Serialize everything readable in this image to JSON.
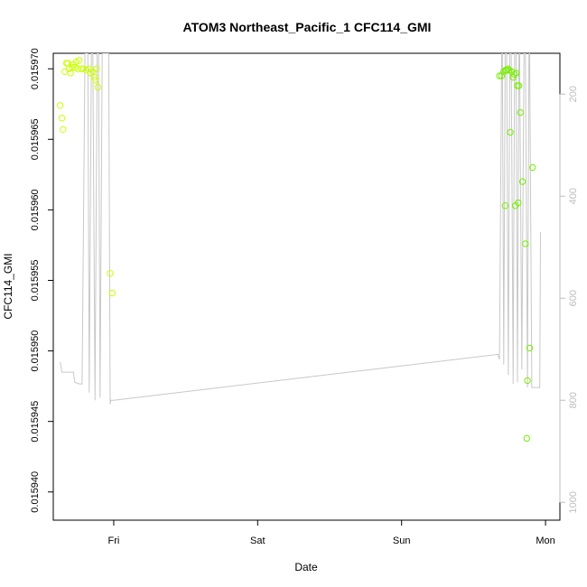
{
  "chart_data": {
    "type": "scatter",
    "title": "ATOM3 Northeast_Pacific_1 CFC114_GMI",
    "xlabel": "Date",
    "ylabel": "CFC114_GMI",
    "x_ticks": [
      "Fri",
      "Sat",
      "Sun",
      "Mon"
    ],
    "x_tick_values": [
      1.0,
      2.0,
      3.0,
      4.0
    ],
    "xlim": [
      0.58,
      4.1
    ],
    "ylim": [
      0.015938,
      0.0159711
    ],
    "y_ticks": [
      "0.015940",
      "0.015945",
      "0.015950",
      "0.015955",
      "0.015960",
      "0.015965",
      "0.015970"
    ],
    "y_tick_values": [
      0.01594,
      0.015945,
      0.01595,
      0.015955,
      0.01596,
      0.015965,
      0.01597
    ],
    "y2_ticks": [
      "200",
      "400",
      "600",
      "800",
      "1000"
    ],
    "y2_tick_values": [
      200,
      400,
      600,
      800,
      1000
    ],
    "y2lim": [
      1035,
      120
    ],
    "grid": false,
    "colors": {
      "line": "#c8c8c8",
      "points_early": "#ccff00",
      "points_late": "#77ee00",
      "frame": "#000000"
    },
    "series": [
      {
        "values": [
          [
            0.628,
            0.0159674
          ],
          [
            0.64,
            0.0159665
          ],
          [
            0.648,
            0.0159657
          ],
          [
            0.66,
            0.0159698
          ],
          [
            0.672,
            0.0159704
          ],
          [
            0.68,
            0.0159704
          ],
          [
            0.69,
            0.01597
          ],
          [
            0.7,
            0.0159697
          ],
          [
            0.712,
            0.0159701
          ],
          [
            0.72,
            0.0159703
          ],
          [
            0.73,
            0.0159701
          ],
          [
            0.74,
            0.0159705
          ],
          [
            0.75,
            0.01597
          ],
          [
            0.76,
            0.0159706
          ],
          [
            0.775,
            0.01597
          ],
          [
            0.79,
            0.01597
          ],
          [
            0.81,
            0.0159699
          ],
          [
            0.825,
            0.01597
          ],
          [
            0.84,
            0.0159697
          ],
          [
            0.855,
            0.0159698
          ],
          [
            0.865,
            0.0159694
          ],
          [
            0.875,
            0.0159692
          ],
          [
            0.88,
            0.01597
          ],
          [
            0.89,
            0.0159687
          ],
          [
            0.975,
            0.0159555
          ],
          [
            0.99,
            0.0159541
          ]
        ]
      },
      {
        "values": [
          [
            3.68,
            0.0159695
          ],
          [
            3.695,
            0.0159695
          ],
          [
            3.71,
            0.0159698
          ],
          [
            3.722,
            0.0159699
          ],
          [
            3.73,
            0.0159699
          ],
          [
            3.74,
            0.01597
          ],
          [
            3.748,
            0.0159699
          ],
          [
            3.755,
            0.0159655
          ],
          [
            3.765,
            0.0159698
          ],
          [
            3.775,
            0.0159694
          ],
          [
            3.785,
            0.0159696
          ],
          [
            3.795,
            0.0159697
          ],
          [
            3.805,
            0.0159688
          ],
          [
            3.815,
            0.0159688
          ],
          [
            3.72,
            0.0159603
          ],
          [
            3.79,
            0.0159603
          ],
          [
            3.81,
            0.0159605
          ],
          [
            3.825,
            0.0159669
          ],
          [
            3.84,
            0.015962
          ],
          [
            3.86,
            0.0159576
          ],
          [
            3.87,
            0.0159438
          ],
          [
            3.875,
            0.0159479
          ],
          [
            3.89,
            0.0159502
          ],
          [
            3.91,
            0.015963
          ]
        ]
      }
    ],
    "line_y2": [
      [
        0.628,
        725
      ],
      [
        0.64,
        745
      ],
      [
        0.69,
        745
      ],
      [
        0.72,
        745
      ],
      [
        0.73,
        765
      ],
      [
        0.76,
        768
      ],
      [
        0.78,
        768
      ],
      [
        0.8,
        120
      ],
      [
        0.82,
        120
      ],
      [
        0.83,
        785
      ],
      [
        0.845,
        120
      ],
      [
        0.855,
        120
      ],
      [
        0.87,
        800
      ],
      [
        0.885,
        120
      ],
      [
        0.895,
        120
      ],
      [
        0.905,
        795
      ],
      [
        0.92,
        120
      ],
      [
        0.935,
        120
      ],
      [
        0.955,
        120
      ],
      [
        0.965,
        120
      ],
      [
        0.975,
        808
      ],
      [
        0.98,
        800
      ],
      [
        1.0,
        800
      ],
      [
        3.67,
        710
      ],
      [
        3.68,
        720
      ],
      [
        3.695,
        120
      ],
      [
        3.7,
        120
      ],
      [
        3.71,
        730
      ],
      [
        3.72,
        120
      ],
      [
        3.73,
        120
      ],
      [
        3.742,
        750
      ],
      [
        3.752,
        120
      ],
      [
        3.762,
        120
      ],
      [
        3.775,
        768
      ],
      [
        3.785,
        120
      ],
      [
        3.795,
        120
      ],
      [
        3.805,
        765
      ],
      [
        3.815,
        120
      ],
      [
        3.82,
        120
      ],
      [
        3.835,
        740
      ],
      [
        3.85,
        120
      ],
      [
        3.86,
        120
      ],
      [
        3.875,
        775
      ],
      [
        3.885,
        120
      ],
      [
        3.89,
        120
      ],
      [
        3.905,
        775
      ],
      [
        3.915,
        775
      ],
      [
        3.92,
        775
      ],
      [
        3.93,
        775
      ],
      [
        3.94,
        775
      ],
      [
        3.95,
        775
      ],
      [
        3.96,
        775
      ],
      [
        3.965,
        470
      ]
    ]
  }
}
